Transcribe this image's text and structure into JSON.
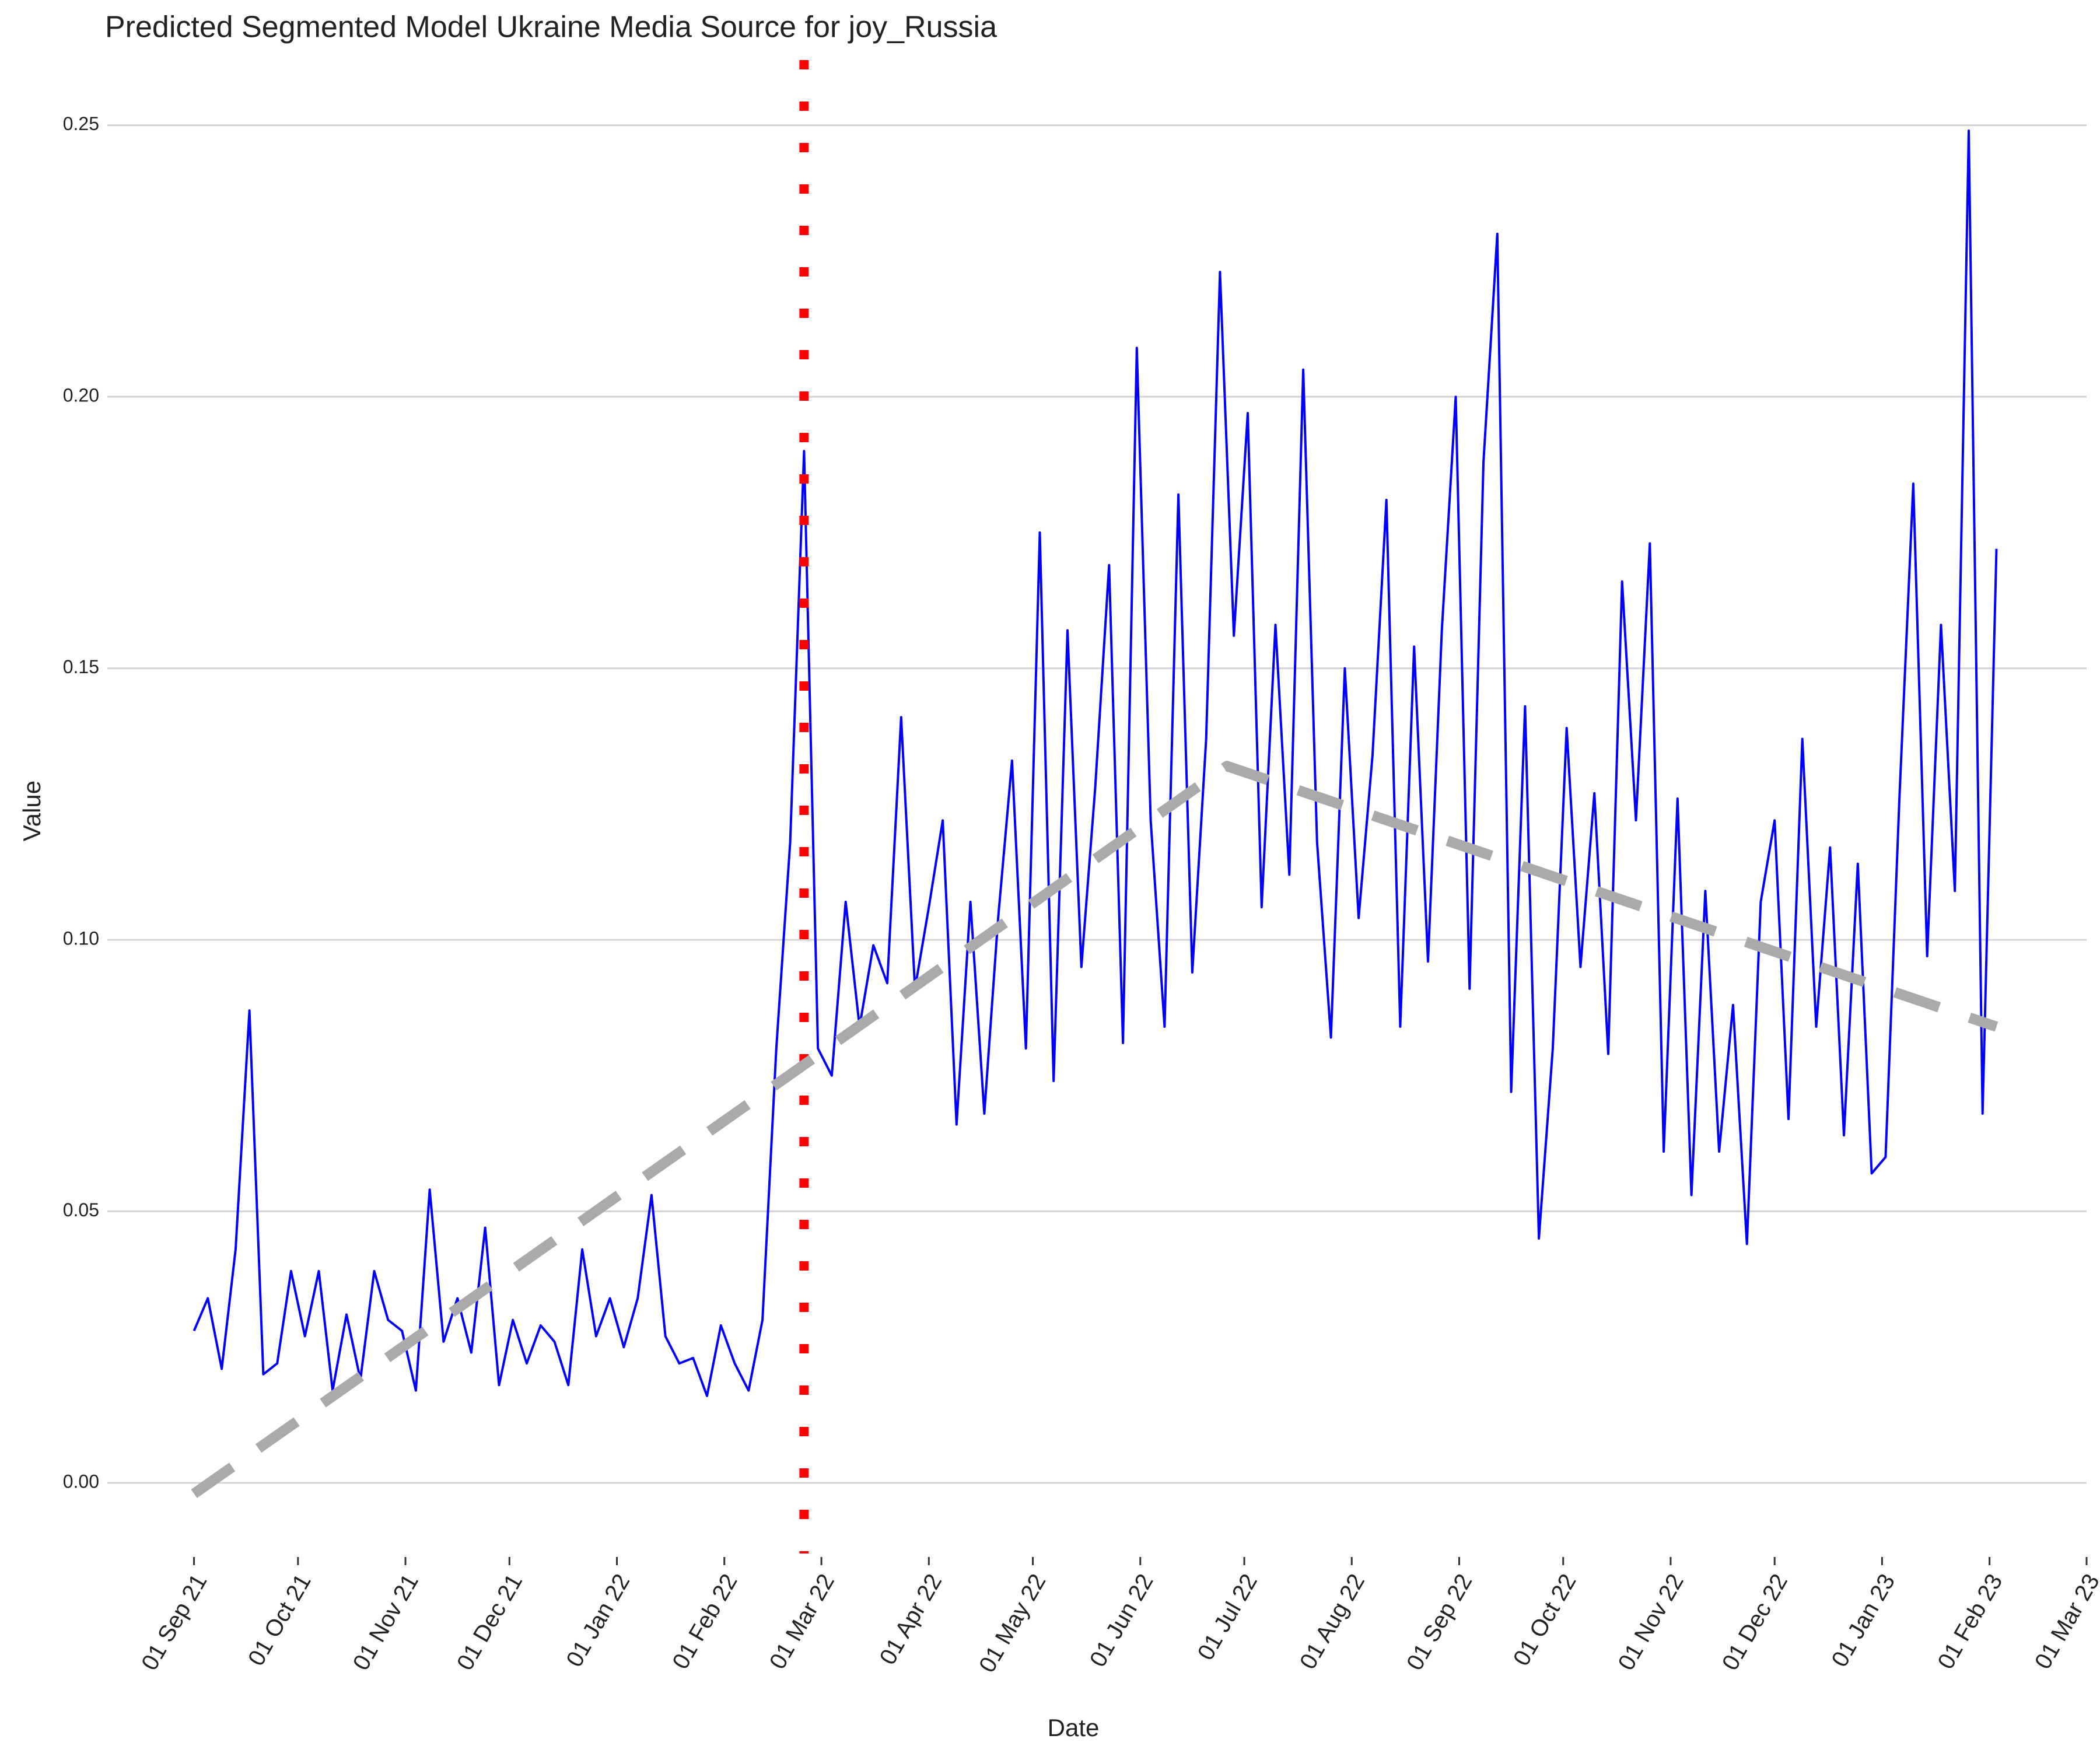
{
  "chart_data": {
    "type": "line",
    "title": "Predicted Segmented Model Ukraine Media Source for joy_Russia",
    "x_label": "Date",
    "y_label": "Value",
    "xlim": [
      "2021-08-07",
      "2023-03-01"
    ],
    "ylim": [
      -0.013,
      0.262
    ],
    "xticks": [
      {
        "value": "2021-09-01",
        "label": "01 Sep 21"
      },
      {
        "value": "2021-10-01",
        "label": "01 Oct 21"
      },
      {
        "value": "2021-11-01",
        "label": "01 Nov 21"
      },
      {
        "value": "2021-12-01",
        "label": "01 Dec 21"
      },
      {
        "value": "2022-01-01",
        "label": "01 Jan 22"
      },
      {
        "value": "2022-02-01",
        "label": "01 Feb 22"
      },
      {
        "value": "2022-03-01",
        "label": "01 Mar 22"
      },
      {
        "value": "2022-04-01",
        "label": "01 Apr 22"
      },
      {
        "value": "2022-05-01",
        "label": "01 May 22"
      },
      {
        "value": "2022-06-01",
        "label": "01 Jun 22"
      },
      {
        "value": "2022-07-01",
        "label": "01 Jul 22"
      },
      {
        "value": "2022-08-01",
        "label": "01 Aug 22"
      },
      {
        "value": "2022-09-01",
        "label": "01 Sep 22"
      },
      {
        "value": "2022-10-01",
        "label": "01 Oct 22"
      },
      {
        "value": "2022-11-01",
        "label": "01 Nov 22"
      },
      {
        "value": "2022-12-01",
        "label": "01 Dec 22"
      },
      {
        "value": "2023-01-01",
        "label": "01 Jan 23"
      },
      {
        "value": "2023-02-01",
        "label": "01 Feb 23"
      },
      {
        "value": "2023-03-01",
        "label": "01 Mar 23"
      }
    ],
    "yticks": [
      {
        "value": 0,
        "label": "0.00"
      },
      0.05,
      {
        "value": 0.1,
        "label": "0.10"
      },
      0.15,
      {
        "value": 0.2,
        "label": "0.20"
      },
      0.25
    ],
    "grid": true,
    "vline": "2022-02-24",
    "vline_color": "#ff0000",
    "series": [
      {
        "color": "#0000ff",
        "line_style": "solid",
        "x": [
          "2021-09-01",
          "2021-09-05",
          "2021-09-09",
          "2021-09-13",
          "2021-09-17",
          "2021-09-21",
          "2021-09-25",
          "2021-09-29",
          "2021-10-03",
          "2021-10-07",
          "2021-10-11",
          "2021-10-15",
          "2021-10-19",
          "2021-10-23",
          "2021-10-27",
          "2021-10-31",
          "2021-11-04",
          "2021-11-08",
          "2021-11-12",
          "2021-11-16",
          "2021-11-20",
          "2021-11-24",
          "2021-11-28",
          "2021-12-02",
          "2021-12-06",
          "2021-12-10",
          "2021-12-14",
          "2021-12-18",
          "2021-12-22",
          "2021-12-26",
          "2021-12-30",
          "2022-01-03",
          "2022-01-07",
          "2022-01-11",
          "2022-01-15",
          "2022-01-19",
          "2022-01-23",
          "2022-01-27",
          "2022-01-31",
          "2022-02-04",
          "2022-02-08",
          "2022-02-12",
          "2022-02-16",
          "2022-02-20",
          "2022-02-24",
          "2022-02-28",
          "2022-03-04",
          "2022-03-08",
          "2022-03-12",
          "2022-03-16",
          "2022-03-20",
          "2022-03-24",
          "2022-03-28",
          "2022-04-01",
          "2022-04-05",
          "2022-04-09",
          "2022-04-13",
          "2022-04-17",
          "2022-04-21",
          "2022-04-25",
          "2022-04-29",
          "2022-05-03",
          "2022-05-07",
          "2022-05-11",
          "2022-05-15",
          "2022-05-19",
          "2022-05-23",
          "2022-05-27",
          "2022-05-31",
          "2022-06-04",
          "2022-06-08",
          "2022-06-12",
          "2022-06-16",
          "2022-06-20",
          "2022-06-24",
          "2022-06-28",
          "2022-07-02",
          "2022-07-06",
          "2022-07-10",
          "2022-07-14",
          "2022-07-18",
          "2022-07-22",
          "2022-07-26",
          "2022-07-30",
          "2022-08-03",
          "2022-08-07",
          "2022-08-11",
          "2022-08-15",
          "2022-08-19",
          "2022-08-23",
          "2022-08-27",
          "2022-08-31",
          "2022-09-04",
          "2022-09-08",
          "2022-09-12",
          "2022-09-16",
          "2022-09-20",
          "2022-09-24",
          "2022-09-28",
          "2022-10-02",
          "2022-10-06",
          "2022-10-10",
          "2022-10-14",
          "2022-10-18",
          "2022-10-22",
          "2022-10-26",
          "2022-10-30",
          "2022-11-03",
          "2022-11-07",
          "2022-11-11",
          "2022-11-15",
          "2022-11-19",
          "2022-11-23",
          "2022-11-27",
          "2022-12-01",
          "2022-12-05",
          "2022-12-09",
          "2022-12-13",
          "2022-12-17",
          "2022-12-21",
          "2022-12-25",
          "2022-12-29",
          "2023-01-02",
          "2023-01-06",
          "2023-01-10",
          "2023-01-14",
          "2023-01-18",
          "2023-01-22",
          "2023-01-26",
          "2023-01-30",
          "2023-02-03"
        ],
        "values": [
          0.028,
          0.034,
          0.021,
          0.043,
          0.087,
          0.02,
          0.022,
          0.039,
          0.027,
          0.039,
          0.017,
          0.031,
          0.019,
          0.039,
          0.03,
          0.028,
          0.017,
          0.054,
          0.026,
          0.034,
          0.024,
          0.047,
          0.018,
          0.03,
          0.022,
          0.029,
          0.026,
          0.018,
          0.043,
          0.027,
          0.034,
          0.025,
          0.034,
          0.053,
          0.027,
          0.022,
          0.023,
          0.016,
          0.029,
          0.022,
          0.017,
          0.03,
          0.08,
          0.118,
          0.19,
          0.08,
          0.075,
          0.107,
          0.084,
          0.099,
          0.092,
          0.141,
          0.091,
          0.106,
          0.122,
          0.066,
          0.107,
          0.068,
          0.104,
          0.133,
          0.08,
          0.175,
          0.074,
          0.157,
          0.095,
          0.128,
          0.169,
          0.081,
          0.209,
          0.122,
          0.084,
          0.182,
          0.094,
          0.137,
          0.223,
          0.156,
          0.197,
          0.106,
          0.158,
          0.112,
          0.205,
          0.118,
          0.082,
          0.15,
          0.104,
          0.134,
          0.181,
          0.084,
          0.154,
          0.096,
          0.157,
          0.2,
          0.091,
          0.188,
          0.23,
          0.072,
          0.143,
          0.045,
          0.08,
          0.139,
          0.095,
          0.127,
          0.079,
          0.166,
          0.122,
          0.173,
          0.061,
          0.126,
          0.053,
          0.109,
          0.061,
          0.088,
          0.044,
          0.107,
          0.122,
          0.067,
          0.137,
          0.084,
          0.117,
          0.064,
          0.114,
          0.057,
          0.06,
          0.126,
          0.184,
          0.097,
          0.158,
          0.109,
          0.249,
          0.068,
          0.172
        ]
      },
      {
        "color": "#aaaaaa",
        "line_style": "dashed",
        "x": [
          "2021-09-01",
          "2022-02-24",
          "2022-06-26",
          "2023-02-03"
        ],
        "values": [
          -0.002,
          0.077,
          0.132,
          0.084
        ]
      }
    ]
  }
}
